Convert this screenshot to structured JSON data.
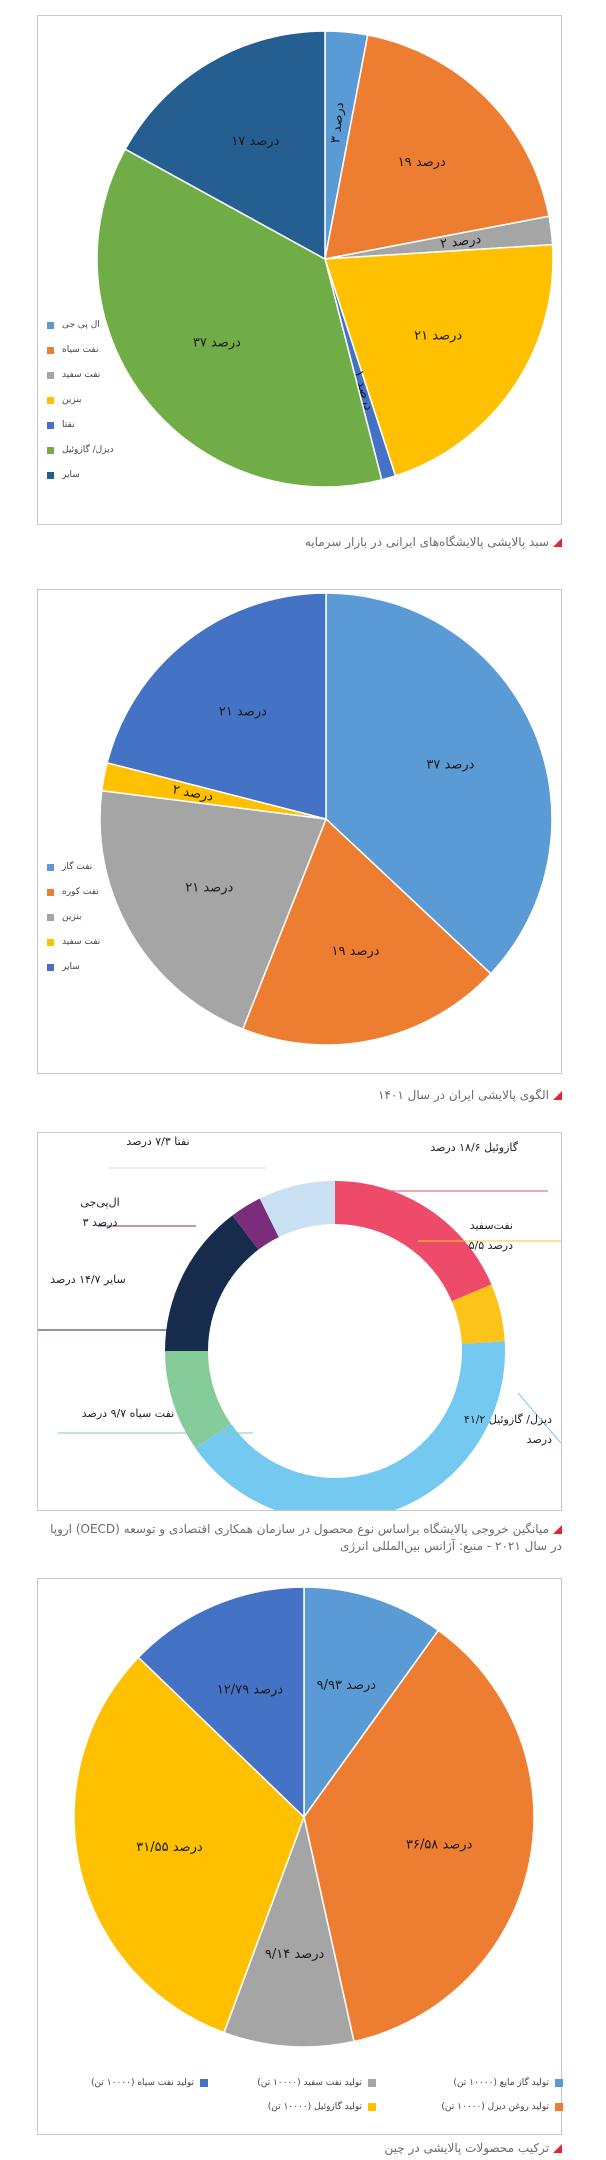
{
  "colors": {
    "caption_marker": "#e32636",
    "panel_border": "#c8c8c8"
  },
  "captions": {
    "c1": "سبد پالایشی پالایشگاه‌های ایرانی در بازار سرمایه",
    "c2": "الگوی پالایشی ایران در سال ۱۴۰۱",
    "c3": "میانگین خروجی پالایشگاه براساس نوع محصول در سازمان همکاری اقتصادی و توسعه (OECD) اروپا در سال ۲۰۲۱ - منبع: آژانس بین‌المللی انرژی",
    "c4": "ترکیب محصولات پالایشی در چین"
  },
  "chart_data": [
    {
      "type": "pie",
      "title": "",
      "slices": [
        {
          "name": "ال پی جی",
          "value": 3,
          "label": "۳ درصد",
          "color": "#5b9bd5"
        },
        {
          "name": "نفت سیاه",
          "value": 19,
          "label": "۱۹ درصد",
          "color": "#ed7d31"
        },
        {
          "name": "نفت سفید",
          "value": 2,
          "label": "۲ درصد",
          "color": "#a5a5a5"
        },
        {
          "name": "بنزین",
          "value": 21,
          "label": "۲۱ درصد",
          "color": "#ffc000"
        },
        {
          "name": "نفتا",
          "value": 1,
          "label": "۱ درصد",
          "color": "#4472c4"
        },
        {
          "name": "دیزل/ گازوئیل",
          "value": 37,
          "label": "۳۷ درصد",
          "color": "#70ad47"
        },
        {
          "name": "سایر",
          "value": 17,
          "label": "۱۷ درصد",
          "color": "#255e91"
        }
      ],
      "legend_position": "bottom-left"
    },
    {
      "type": "pie",
      "title": "",
      "slices": [
        {
          "name": "نفت گاز",
          "value": 37,
          "label": "۳۷ درصد",
          "color": "#5b9bd5"
        },
        {
          "name": "نفت کوره",
          "value": 19,
          "label": "۱۹ درصد",
          "color": "#ed7d31"
        },
        {
          "name": "بنزین",
          "value": 21,
          "label": "۲۱ درصد",
          "color": "#a5a5a5"
        },
        {
          "name": "نفت سفید",
          "value": 2,
          "label": "۲ درصد",
          "color": "#ffc000"
        },
        {
          "name": "سایر",
          "value": 21,
          "label": "۲۱ درصد",
          "color": "#4472c4"
        }
      ],
      "legend_position": "left"
    },
    {
      "type": "donut",
      "title": "",
      "slices": [
        {
          "name": "گازوئیل",
          "value": 18.6,
          "label": "گازوئیل ۱۸/۶ درصد",
          "color": "#ee4b6a"
        },
        {
          "name": "نفت‌سفید",
          "value": 5.5,
          "label_line1": "نفت‌سفید",
          "label_line2": "۵/۵ درصد",
          "color": "#fcc419"
        },
        {
          "name": "دیزل/ گازوئیل",
          "value": 41.2,
          "label_line1": "دیزل/ گازوئیل ۴۱/۲",
          "label_line2": "درصد",
          "color": "#74c9f0"
        },
        {
          "name": "نفت سیاه",
          "value": 9.7,
          "label": "نفت سیاه ۹/۷ درصد",
          "color": "#86cc9b"
        },
        {
          "name": "سایر",
          "value": 14.7,
          "label": "سایر ۱۴/۷ درصد",
          "color": "#172b4d"
        },
        {
          "name": "ال‌پی‌جی",
          "value": 3,
          "label_line1": "ال‌پی‌جی",
          "label_line2": "۳ درصد",
          "color": "#7b2d7b"
        },
        {
          "name": "نفتا",
          "value": 7.3,
          "label": "نفتا ۷/۳ درصد",
          "color": "#c9dff2"
        }
      ]
    },
    {
      "type": "pie",
      "title": "",
      "slices": [
        {
          "name": "تولید گاز مایع (۱۰۰۰۰ تن)",
          "value": 9.93,
          "label": "۹/۹۳ درصد",
          "color": "#5b9bd5"
        },
        {
          "name": "تولید روغن دیزل (۱۰۰۰۰ تن)",
          "value": 36.58,
          "label": "۳۶/۵۸ درصد",
          "color": "#ed7d31"
        },
        {
          "name": "تولید نفت سفید (۱۰۰۰۰ تن)",
          "value": 9.14,
          "label": "۹/۱۴ درصد",
          "color": "#a5a5a5"
        },
        {
          "name": "تولید گازوئیل (۱۰۰۰۰ تن)",
          "value": 31.55,
          "label": "۳۱/۵۵ درصد",
          "color": "#ffc000"
        },
        {
          "name": "تولید نفت سیاه (۱۰۰۰۰ تن)",
          "value": 12.79,
          "label": "۱۲/۷۹ درصد",
          "color": "#4472c4"
        }
      ],
      "legend_position": "bottom"
    }
  ]
}
